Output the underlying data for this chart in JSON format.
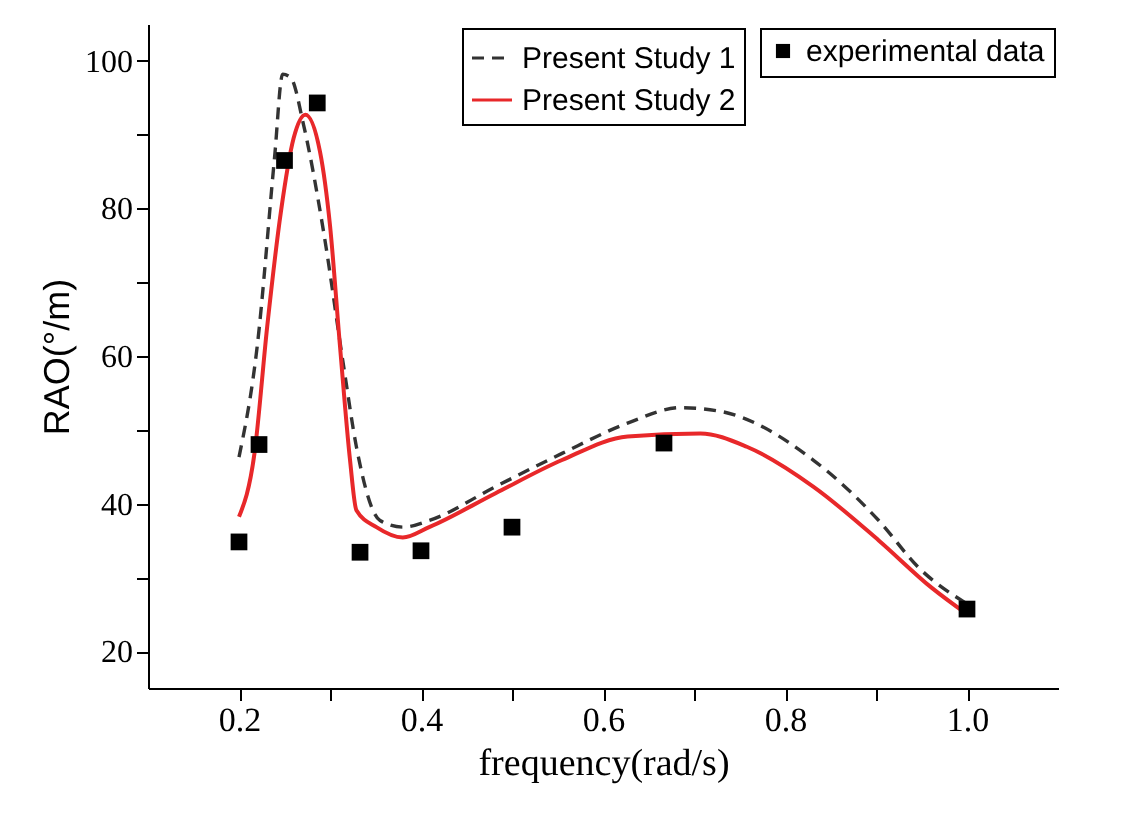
{
  "chart_data": {
    "type": "line",
    "xlabel": "frequency(rad/s)",
    "ylabel": "RAO(°/m)",
    "xlim": [
      0.1,
      1.1
    ],
    "ylim": [
      15,
      105
    ],
    "xticks": [
      0.2,
      {
        "value": 0.3,
        "label": null
      },
      0.4,
      {
        "value": 0.5,
        "label": null
      },
      0.6,
      {
        "value": 0.7,
        "label": null
      },
      0.8,
      {
        "value": 0.9,
        "label": null
      },
      {
        "value": 1.0,
        "label": "1.0"
      }
    ],
    "yticks": [
      20,
      {
        "value": 30,
        "label": null
      },
      40,
      {
        "value": 50,
        "label": null
      },
      60,
      {
        "value": 70,
        "label": null
      },
      80,
      {
        "value": 90,
        "label": null
      },
      100
    ],
    "grid": false,
    "legend": "top right",
    "series": [
      {
        "name": "Present Study 1",
        "color": "#333333",
        "line_style": "dashed",
        "x": [
          0.2,
          0.22,
          0.239,
          0.248,
          0.257,
          0.271,
          0.293,
          0.315,
          0.329,
          0.355,
          0.38,
          0.409,
          0.482,
          0.555,
          0.627,
          0.685,
          0.729,
          0.831,
          0.903,
          0.947,
          1.0
        ],
        "values": [
          46.3,
          61.3,
          86.8,
          98.2,
          97.7,
          91.3,
          76.8,
          58.6,
          47.7,
          37.7,
          36.8,
          37.7,
          42.3,
          46.8,
          50.9,
          53,
          52.5,
          45.9,
          37.7,
          31.3,
          26.4
        ]
      },
      {
        "name": "Present Study 2",
        "color": "#e8282a",
        "line_style": "solid",
        "x": [
          0.2,
          0.217,
          0.231,
          0.246,
          0.26,
          0.273,
          0.289,
          0.3,
          0.311,
          0.322,
          0.329,
          0.351,
          0.38,
          0.409,
          0.482,
          0.555,
          0.627,
          0.707,
          0.758,
          0.831,
          0.903,
          0.961,
          1.0
        ],
        "values": [
          38.2,
          46.8,
          64,
          79.5,
          89.5,
          92.7,
          87.7,
          77.7,
          61.3,
          45.9,
          39.1,
          36.8,
          35.4,
          36.8,
          41.4,
          45.9,
          49.1,
          49.5,
          47.7,
          42.3,
          35,
          28.6,
          25
        ]
      },
      {
        "name": "experimental data",
        "type": "scatter",
        "marker": "square",
        "color": "#000000",
        "x": [
          0.2,
          0.222,
          0.25,
          0.286,
          0.333,
          0.4,
          0.5,
          0.667,
          1.0
        ],
        "values": [
          34.8,
          48,
          86.5,
          94.3,
          33.4,
          33.6,
          36.8,
          48.2,
          25.7
        ]
      }
    ]
  }
}
